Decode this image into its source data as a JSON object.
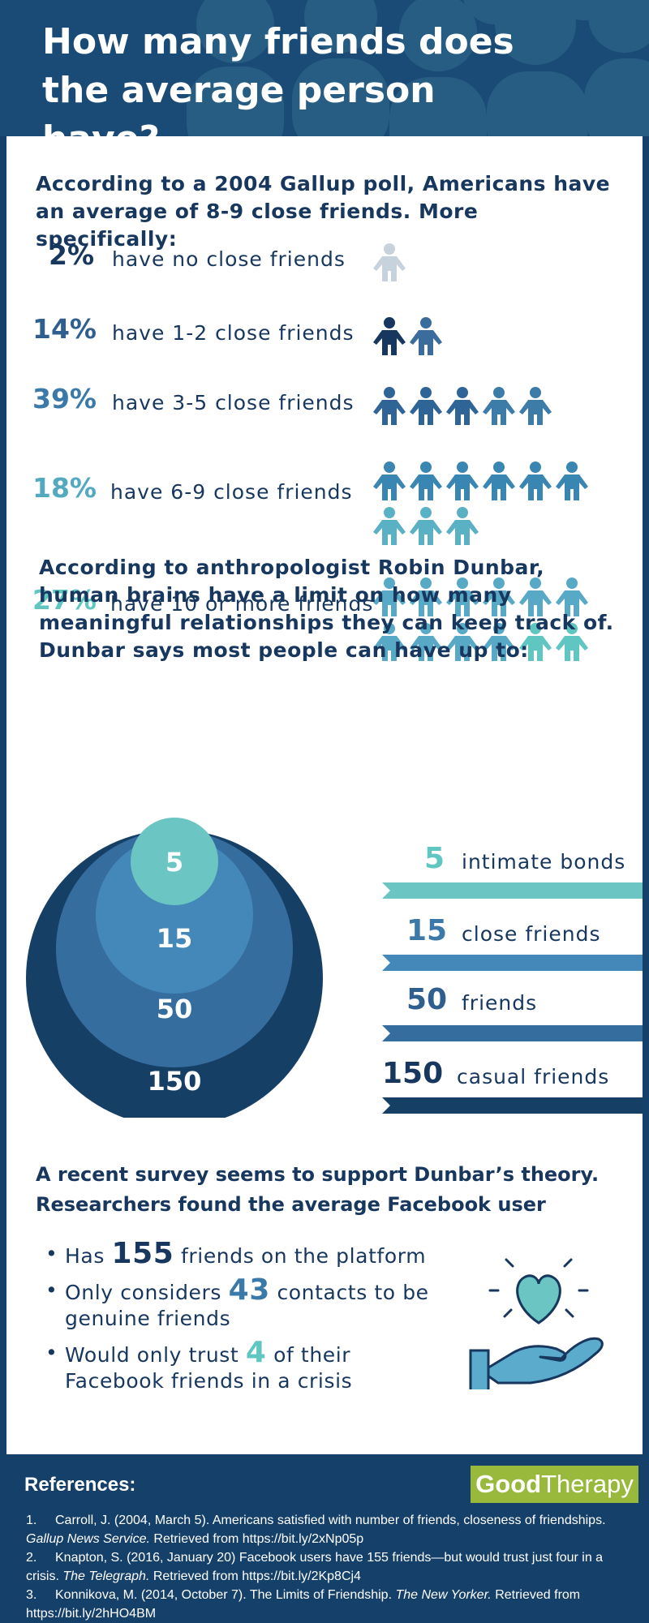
{
  "header": {
    "title": "How many friends does the average person have?"
  },
  "gallup": {
    "intro": "According to a 2004 Gallup poll, Americans have an average of 8-9 close friends. More specifically:",
    "rows": [
      {
        "pct": "2%",
        "label": "have no close friends",
        "color": "#17375e",
        "figures": 1,
        "figure_colors": [
          "#c8d2dc"
        ]
      },
      {
        "pct": "14%",
        "label": "have 1-2 close friends",
        "color": "#2f5f8f",
        "figures": 2,
        "figure_colors": [
          "#17375e",
          "#3a6d9c"
        ]
      },
      {
        "pct": "39%",
        "label": "have 3-5 close friends",
        "color": "#3a79a8",
        "figures": 5,
        "figure_colors": [
          "#2f6496",
          "#2f6496",
          "#2f6496",
          "#3d7ba8",
          "#3d7ba8"
        ]
      },
      {
        "pct": "18%",
        "label": "have 6-9 close friends",
        "color": "#52a9c0",
        "figures": 9,
        "figure_colors": [
          "#3a86b3",
          "#3a86b3",
          "#3a86b3",
          "#3a86b3",
          "#3a86b3",
          "#3a86b3",
          "#5ab1c3",
          "#5ab1c3",
          "#5ab1c3"
        ]
      },
      {
        "pct": "27%",
        "label": "have 10 or more friends",
        "color": "#5fc6c1",
        "figures": 12,
        "figure_colors": [
          "#58a9c6",
          "#58a9c6",
          "#58a9c6",
          "#58a9c6",
          "#58a9c6",
          "#58a9c6",
          "#58a9c6",
          "#58a9c6",
          "#58a9c6",
          "#58a9c6",
          "#5fc6c1",
          "#5fc6c1"
        ]
      }
    ]
  },
  "dunbar": {
    "intro": "According to anthropologist Robin Dunbar, human brains have a limit on how many meaningful relationships they can keep track of. Dunbar says most people can have up to:",
    "circles": [
      {
        "value": "150",
        "color": "#163f66"
      },
      {
        "value": "50",
        "color": "#366d9f"
      },
      {
        "value": "15",
        "color": "#4388b8"
      },
      {
        "value": "5",
        "color": "#6bc5c3"
      }
    ],
    "bands": [
      {
        "value": "5",
        "label": "intimate bonds",
        "color": "#6bc5c3",
        "num_color": "#5fc6c1"
      },
      {
        "value": "15",
        "label": "close friends",
        "color": "#4388b8",
        "num_color": "#3a79a8"
      },
      {
        "value": "50",
        "label": "friends",
        "color": "#366d9f",
        "num_color": "#2f5f8f"
      },
      {
        "value": "150",
        "label": "casual friends",
        "color": "#163f66",
        "num_color": "#17375e"
      }
    ]
  },
  "survey": {
    "intro": "A recent survey seems to support Dunbar’s theory. Researchers found the average Facebook user",
    "bullets": [
      {
        "pre": "Has",
        "num": "155",
        "post": "friends on the platform",
        "num_color": "#17375e"
      },
      {
        "pre": "Only considers",
        "num": "43",
        "post": "contacts to be genuine friends",
        "num_color": "#3a79a8"
      },
      {
        "pre": "Would only trust",
        "num": "4",
        "post": "of their Facebook friends in a crisis",
        "num_color": "#5fc6c1"
      }
    ],
    "icon": "heart-in-hand-icon"
  },
  "references": {
    "title": "References:",
    "logo_bold": "Good",
    "logo_light": "Therapy",
    "items": [
      {
        "num": "1.",
        "a": "Carroll, J. (2004, March 5). Americans satisfied with number of friends, closeness of friendships.",
        "i": "Gallup News Service.",
        "b": "Retrieved from https://bit.ly/2xNp05p"
      },
      {
        "num": "2.",
        "a": "Knapton, S. (2016, January 20) Facebook users have 155 friends—but would trust just four in a crisis.",
        "i": "The Telegraph.",
        "b": "Retrieved from https://bit.ly/2Kp8Cj4"
      },
      {
        "num": "3.",
        "a": "Konnikova, M. (2014, October 7). The Limits of Friendship.",
        "i": "The New Yorker.",
        "b": "Retrieved from https://bit.ly/2hHO4BM"
      }
    ]
  }
}
